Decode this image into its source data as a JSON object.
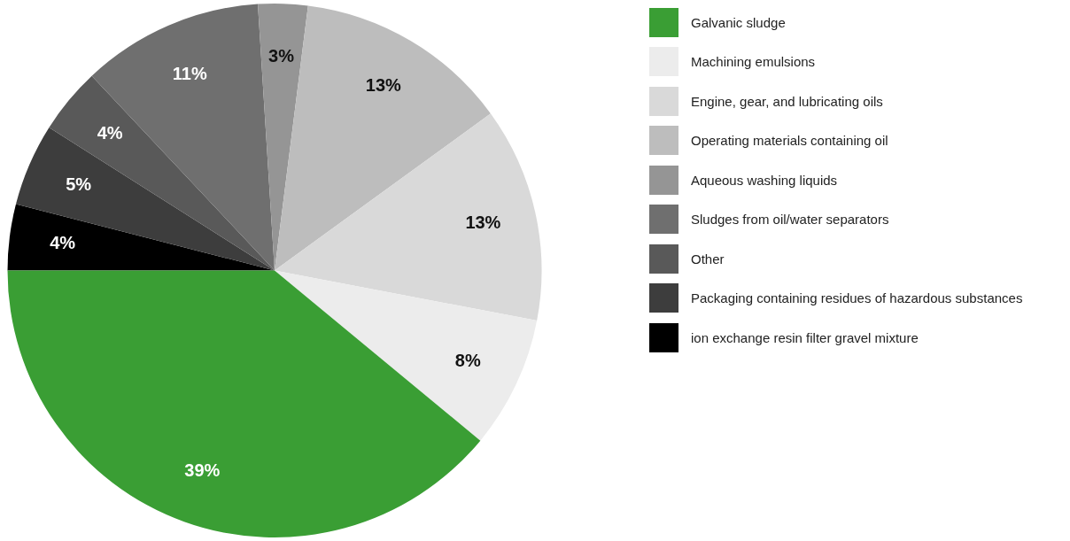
{
  "chart_data": {
    "type": "pie",
    "categories": [
      "Galvanic sludge",
      "Machining emulsions",
      "Engine, gear, and lubricating oils",
      "Operating materials containing oil",
      "Aqueous washing liquids",
      "Sludges from oil/water separators",
      "Other",
      "Packaging containing residues of hazardous substances",
      "ion exchange resin filter gravel mixture"
    ],
    "values": [
      39,
      8,
      13,
      13,
      3,
      11,
      4,
      5,
      4
    ],
    "colors": [
      "#3a9e34",
      "#ececec",
      "#d9d9d9",
      "#bdbdbd",
      "#959595",
      "#6f6f6f",
      "#595959",
      "#3d3d3d",
      "#000000"
    ],
    "value_labels": [
      "39%",
      "8%",
      "13%",
      "13%",
      "3%",
      "11%",
      "4%",
      "5%",
      "4%"
    ],
    "legend": "right"
  }
}
